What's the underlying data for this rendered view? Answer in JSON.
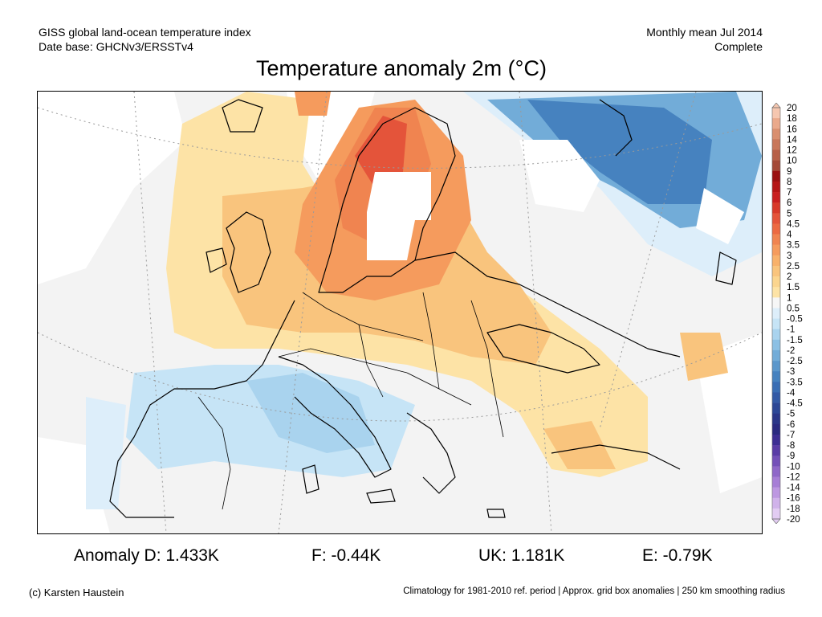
{
  "header": {
    "left_line1": "GISS global land-ocean temperature index",
    "left_line2": "Date base: GHCNv3/ERSSTv4",
    "right_line1": "Monthly mean Jul 2014",
    "right_line2": "Complete"
  },
  "title": "Temperature anomaly 2m (°C)",
  "colorbar": {
    "labels": [
      "20",
      "18",
      "16",
      "14",
      "12",
      "10",
      "9",
      "8",
      "7",
      "6",
      "5",
      "4.5",
      "4",
      "3.5",
      "3",
      "2.5",
      "2",
      "1.5",
      "1",
      "0.5",
      "-0.5",
      "-1",
      "-1.5",
      "-2",
      "-2.5",
      "-3",
      "-3.5",
      "-4",
      "-4.5",
      "-5",
      "-6",
      "-7",
      "-8",
      "-9",
      "-10",
      "-12",
      "-14",
      "-16",
      "-18",
      "-20"
    ],
    "colors": [
      "#f6c7b0",
      "#eaa98b",
      "#d98f6f",
      "#c8775a",
      "#b76048",
      "#a44a38",
      "#9a1111",
      "#b51616",
      "#c92020",
      "#d83a2a",
      "#e4543a",
      "#ec6a42",
      "#f08450",
      "#f59b5d",
      "#f8b16b",
      "#f9c47d",
      "#fbd58f",
      "#fde3a6",
      "#f6f6f6",
      "#ddeefa",
      "#c6e4f6",
      "#a9d3ee",
      "#8cc0e4",
      "#72acd8",
      "#5b97cb",
      "#4682bf",
      "#3a6eb4",
      "#335aa6",
      "#2c4796",
      "#2a3688",
      "#2a2a80",
      "#3d2e93",
      "#5a3ca6",
      "#7450b8",
      "#8f67c8",
      "#a77ed6",
      "#bd97e1",
      "#d0b2ea",
      "#e2ccf2"
    ]
  },
  "stats": {
    "d": "Anomaly D: 1.433K",
    "f": "F: -0.44K",
    "uk": "UK: 1.181K",
    "e": "E: -0.79K"
  },
  "footer": {
    "credit": "(c) Karsten Haustein",
    "note": "Climatology for 1981-2010 ref. period | Approx. grid box anomalies | 250 km smoothing radius"
  }
}
